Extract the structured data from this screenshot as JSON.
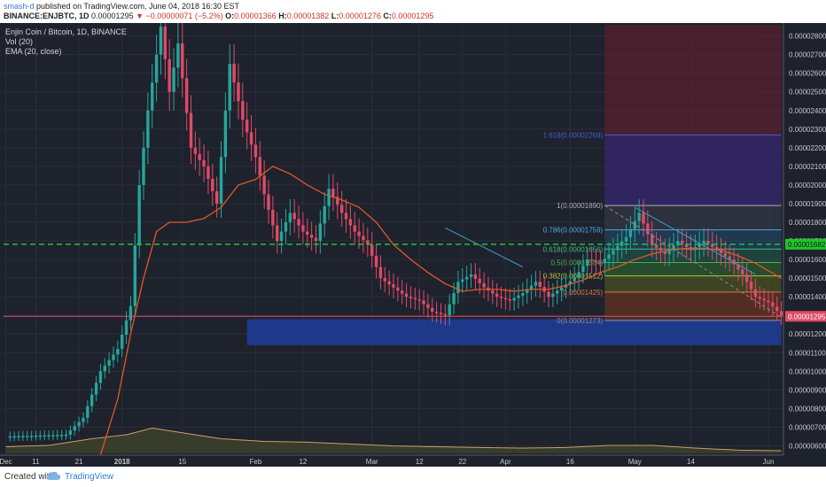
{
  "header": {
    "user": "smash-d",
    "published": "published on TradingView.com, June 04, 2018 16:30 EST",
    "symbol": "BINANCE:ENJBTC, 1D",
    "last": "0.00001295",
    "change": "−0.00000071 (−5.2%)",
    "open_label": "O:",
    "open": "0.00001366",
    "high_label": "H:",
    "high": "0.00001382",
    "low_label": "L:",
    "low": "0.00001276",
    "close_label": "C:",
    "close": "0.00001295"
  },
  "legend": {
    "title": "Enjin Coin / Bitcoin, 1D, BINANCE",
    "vol": "Vol (20)",
    "ema": "EMA (20, close)"
  },
  "footer": {
    "created": "Created with",
    "brand": "TradingView"
  },
  "colors": {
    "bg": "#1e222d",
    "up": "#26a69a",
    "down": "#e04a67",
    "ema": "#e0582a",
    "hline": "#22c32e",
    "zone": "#1f3d9a"
  },
  "chart_data": {
    "type": "candlestick",
    "title": "Enjin Coin / Bitcoin, 1D, BINANCE",
    "ylim": [
      5.5e-06,
      2.86e-05
    ],
    "y_ticks": [
      "0.00002800",
      "0.00002700",
      "0.00002600",
      "0.00002500",
      "0.00002400",
      "0.00002300",
      "0.00002200",
      "0.00002100",
      "0.00002000",
      "0.00001900",
      "0.00001800",
      "0.00001700",
      "0.00001600",
      "0.00001500",
      "0.00001400",
      "0.00001300",
      "0.00001200",
      "0.00001100",
      "0.00001000",
      "0.00000900",
      "0.00000800",
      "0.00000700",
      "0.00000600"
    ],
    "y_tick_values": [
      2.8e-05,
      2.7e-05,
      2.6e-05,
      2.5e-05,
      2.4e-05,
      2.3e-05,
      2.2e-05,
      2.1e-05,
      2e-05,
      1.9e-05,
      1.8e-05,
      1.7e-05,
      1.6e-05,
      1.5e-05,
      1.4e-05,
      1.3e-05,
      1.2e-05,
      1.1e-05,
      1e-05,
      9e-06,
      8e-06,
      7e-06,
      6e-06
    ],
    "x_ticks": [
      {
        "label": "Dec",
        "day": 0
      },
      {
        "label": "11",
        "day": 7
      },
      {
        "label": "21",
        "day": 17
      },
      {
        "label": "2018",
        "day": 27
      },
      {
        "label": "15",
        "day": 41
      },
      {
        "label": "Feb",
        "day": 58
      },
      {
        "label": "12",
        "day": 69
      },
      {
        "label": "Mar",
        "day": 85
      },
      {
        "label": "12",
        "day": 96
      },
      {
        "label": "22",
        "day": 106
      },
      {
        "label": "Apr",
        "day": 116
      },
      {
        "label": "16",
        "day": 131
      },
      {
        "label": "May",
        "day": 146
      },
      {
        "label": "14",
        "day": 159
      },
      {
        "label": "Jun",
        "day": 177
      }
    ],
    "candles_mode": "alternating",
    "price_path": [
      [
        0,
        6.5e-06
      ],
      [
        14,
        6.6e-06
      ],
      [
        18,
        7.5e-06
      ],
      [
        22,
        1e-05
      ],
      [
        26,
        1.12e-05
      ],
      [
        29,
        1.35e-05
      ],
      [
        31,
        2e-05
      ],
      [
        33,
        2.4e-05
      ],
      [
        36,
        2.85e-05
      ],
      [
        38,
        2.5e-05
      ],
      [
        40,
        2.76e-05
      ],
      [
        43,
        2.2e-05
      ],
      [
        46,
        2.1e-05
      ],
      [
        49,
        1.9e-05
      ],
      [
        52,
        2.65e-05
      ],
      [
        55,
        2.35e-05
      ],
      [
        58,
        2.15e-05
      ],
      [
        60,
        1.95e-05
      ],
      [
        63,
        1.7e-05
      ],
      [
        66,
        1.85e-05
      ],
      [
        69,
        1.75e-05
      ],
      [
        72,
        1.7e-05
      ],
      [
        75,
        1.98e-05
      ],
      [
        78,
        1.85e-05
      ],
      [
        81,
        1.75e-05
      ],
      [
        84,
        1.68e-05
      ],
      [
        87,
        1.5e-05
      ],
      [
        90,
        1.45e-05
      ],
      [
        93,
        1.4e-05
      ],
      [
        96,
        1.38e-05
      ],
      [
        99,
        1.32e-05
      ],
      [
        102,
        1.3e-05
      ],
      [
        105,
        1.48e-05
      ],
      [
        108,
        1.52e-05
      ],
      [
        111,
        1.45e-05
      ],
      [
        114,
        1.4e-05
      ],
      [
        117,
        1.38e-05
      ],
      [
        120,
        1.42e-05
      ],
      [
        123,
        1.48e-05
      ],
      [
        126,
        1.4e-05
      ],
      [
        129,
        1.45e-05
      ],
      [
        132,
        1.5e-05
      ],
      [
        135,
        1.6e-05
      ],
      [
        138,
        1.58e-05
      ],
      [
        141,
        1.65e-05
      ],
      [
        144,
        1.72e-05
      ],
      [
        147,
        1.85e-05
      ],
      [
        150,
        1.68e-05
      ],
      [
        153,
        1.63e-05
      ],
      [
        156,
        1.7e-05
      ],
      [
        159,
        1.65e-05
      ],
      [
        162,
        1.7e-05
      ],
      [
        165,
        1.65e-05
      ],
      [
        168,
        1.6e-05
      ],
      [
        171,
        1.52e-05
      ],
      [
        174,
        1.4e-05
      ],
      [
        177,
        1.37e-05
      ],
      [
        180,
        1.3e-05
      ]
    ],
    "ema_path": [
      [
        22,
        5.5e-06
      ],
      [
        26,
        8.5e-06
      ],
      [
        29,
        1.2e-05
      ],
      [
        32,
        1.5e-05
      ],
      [
        35,
        1.75e-05
      ],
      [
        38,
        1.8e-05
      ],
      [
        42,
        1.8e-05
      ],
      [
        46,
        1.82e-05
      ],
      [
        50,
        1.88e-05
      ],
      [
        54,
        2e-05
      ],
      [
        58,
        2.03e-05
      ],
      [
        62,
        2.1e-05
      ],
      [
        66,
        2.06e-05
      ],
      [
        70,
        2e-05
      ],
      [
        74,
        1.95e-05
      ],
      [
        78,
        1.92e-05
      ],
      [
        82,
        1.88e-05
      ],
      [
        86,
        1.8e-05
      ],
      [
        90,
        1.68e-05
      ],
      [
        94,
        1.6e-05
      ],
      [
        98,
        1.53e-05
      ],
      [
        102,
        1.47e-05
      ],
      [
        106,
        1.43e-05
      ],
      [
        110,
        1.44e-05
      ],
      [
        114,
        1.44e-05
      ],
      [
        118,
        1.43e-05
      ],
      [
        122,
        1.44e-05
      ],
      [
        126,
        1.44e-05
      ],
      [
        130,
        1.46e-05
      ],
      [
        134,
        1.49e-05
      ],
      [
        138,
        1.53e-05
      ],
      [
        142,
        1.56e-05
      ],
      [
        146,
        1.6e-05
      ],
      [
        150,
        1.63e-05
      ],
      [
        154,
        1.65e-05
      ],
      [
        158,
        1.66e-05
      ],
      [
        162,
        1.66e-05
      ],
      [
        166,
        1.65e-05
      ],
      [
        170,
        1.62e-05
      ],
      [
        174,
        1.58e-05
      ],
      [
        180,
        1.5e-05
      ]
    ],
    "horizontal_line": {
      "value": 1.682e-05,
      "label": "0.00001682"
    },
    "current_price": {
      "value": 1.295e-05,
      "label": "0.00001295"
    },
    "support_zone": {
      "from_day": 56,
      "to_day": 180,
      "low": 1.14e-05,
      "high": 1.28e-05
    },
    "position_zone": {
      "from_day": 139,
      "to_day": 180,
      "stop_low": 1.89e-05,
      "stop_high": 2.86e-05,
      "target_low": 1.29e-05,
      "entry": 1.42e-05
    },
    "fibonacci": {
      "from_day": 139,
      "to_day": 180,
      "levels": [
        {
          "ratio": "1.618",
          "label": "1.618(0.00002269)",
          "value": 2.269e-05,
          "color": "#4a5cd1"
        },
        {
          "ratio": "1",
          "label": "1(0.00001890)",
          "value": 1.89e-05,
          "color": "#b0b0b0"
        },
        {
          "ratio": "0.786",
          "label": "0.786(0.00001759)",
          "value": 1.759e-05,
          "color": "#4fa6e0"
        },
        {
          "ratio": "0.618",
          "label": "0.618(0.00001656)",
          "value": 1.656e-05,
          "color": "#3bbf8a"
        },
        {
          "ratio": "0.5",
          "label": "0.5(0.00001584)",
          "value": 1.584e-05,
          "color": "#4caf50"
        },
        {
          "ratio": "0.382",
          "label": "0.382(0.00001512)",
          "value": 1.512e-05,
          "color": "#b8c43a"
        },
        {
          "ratio": "0.236",
          "label": "(0.00001425)",
          "value": 1.425e-05,
          "color": "#e07a3a"
        },
        {
          "ratio": "0",
          "label": "0(0.00001273)",
          "value": 1.273e-05,
          "color": "#8e8e8e"
        }
      ]
    },
    "trendlines": [
      {
        "from": [
          102,
          1.77e-05
        ],
        "to": [
          120,
          1.56e-05
        ],
        "color": "#3f9ac8"
      },
      {
        "from": [
          146,
          1.88e-05
        ],
        "to": [
          174,
          1.52e-05
        ],
        "color": "#3f9ac8"
      },
      {
        "from": [
          139,
          1.89e-05
        ],
        "to": [
          180,
          1.29e-05
        ],
        "color": "#8a8a8a",
        "dashed": true
      }
    ],
    "volume_path": [
      [
        0,
        0.25
      ],
      [
        10,
        0.3
      ],
      [
        20,
        0.55
      ],
      [
        28,
        0.7
      ],
      [
        34,
        0.95
      ],
      [
        40,
        0.8
      ],
      [
        50,
        0.55
      ],
      [
        60,
        0.45
      ],
      [
        70,
        0.42
      ],
      [
        80,
        0.35
      ],
      [
        90,
        0.28
      ],
      [
        100,
        0.25
      ],
      [
        110,
        0.22
      ],
      [
        120,
        0.2
      ],
      [
        130,
        0.22
      ],
      [
        140,
        0.3
      ],
      [
        150,
        0.3
      ],
      [
        160,
        0.2
      ],
      [
        170,
        0.12
      ],
      [
        180,
        0.1
      ]
    ]
  }
}
